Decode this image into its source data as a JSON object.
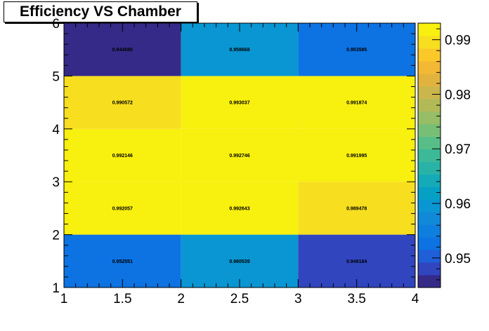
{
  "chart_data": {
    "type": "heatmap",
    "title": "Efficiency VS Chamber",
    "xlabel": "",
    "ylabel": "",
    "xlim": [
      1,
      4
    ],
    "ylim": [
      1,
      6
    ],
    "x_edges": [
      1,
      2,
      3,
      4
    ],
    "y_edges": [
      1,
      2,
      3,
      4,
      5,
      6
    ],
    "x_ticks": [
      "1",
      "1.5",
      "2",
      "2.5",
      "3",
      "3.5",
      "4"
    ],
    "y_ticks": [
      "1",
      "2",
      "3",
      "4",
      "5",
      "6"
    ],
    "cells": [
      {
        "x": 1.5,
        "y": 1.5,
        "value": 0.952551,
        "label": "0.952551"
      },
      {
        "x": 2.5,
        "y": 1.5,
        "value": 0.960539,
        "label": "0.960539"
      },
      {
        "x": 3.5,
        "y": 1.5,
        "value": 0.949184,
        "label": "0.949184"
      },
      {
        "x": 1.5,
        "y": 2.5,
        "value": 0.992057,
        "label": "0.992057"
      },
      {
        "x": 2.5,
        "y": 2.5,
        "value": 0.992643,
        "label": "0.992643"
      },
      {
        "x": 3.5,
        "y": 2.5,
        "value": 0.989478,
        "label": "0.989478"
      },
      {
        "x": 1.5,
        "y": 3.5,
        "value": 0.992146,
        "label": "0.992146"
      },
      {
        "x": 2.5,
        "y": 3.5,
        "value": 0.992746,
        "label": "0.992746"
      },
      {
        "x": 3.5,
        "y": 3.5,
        "value": 0.991995,
        "label": "0.991995"
      },
      {
        "x": 1.5,
        "y": 4.5,
        "value": 0.990572,
        "label": "0.990572"
      },
      {
        "x": 2.5,
        "y": 4.5,
        "value": 0.993037,
        "label": "0.993037"
      },
      {
        "x": 3.5,
        "y": 4.5,
        "value": 0.991874,
        "label": "0.991874"
      },
      {
        "x": 1.5,
        "y": 5.5,
        "value": 0.944585,
        "label": "0.944585"
      },
      {
        "x": 2.5,
        "y": 5.5,
        "value": 0.958668,
        "label": "0.958668"
      },
      {
        "x": 3.5,
        "y": 5.5,
        "value": 0.953585,
        "label": "0.953585"
      }
    ],
    "colorbar": {
      "zmin": 0.944585,
      "zmax": 0.993037,
      "ticks": [
        0.95,
        0.96,
        0.97,
        0.98,
        0.99
      ],
      "tick_labels": [
        "0.95",
        "0.96",
        "0.97",
        "0.98",
        "0.99"
      ],
      "palette": [
        "#352a87",
        "#3145bf",
        "#1f5fd8",
        "#0d72e2",
        "#0f7fdf",
        "#1189d9",
        "#0996d2",
        "#06a0c5",
        "#14aab8",
        "#29b3a7",
        "#3cba97",
        "#58be87",
        "#78bf76",
        "#97bd67",
        "#b2ba58",
        "#cbb64b",
        "#e1b33e",
        "#f3b834",
        "#fbc82a",
        "#f7de1f",
        "#f8f00e"
      ]
    },
    "grid": false
  }
}
